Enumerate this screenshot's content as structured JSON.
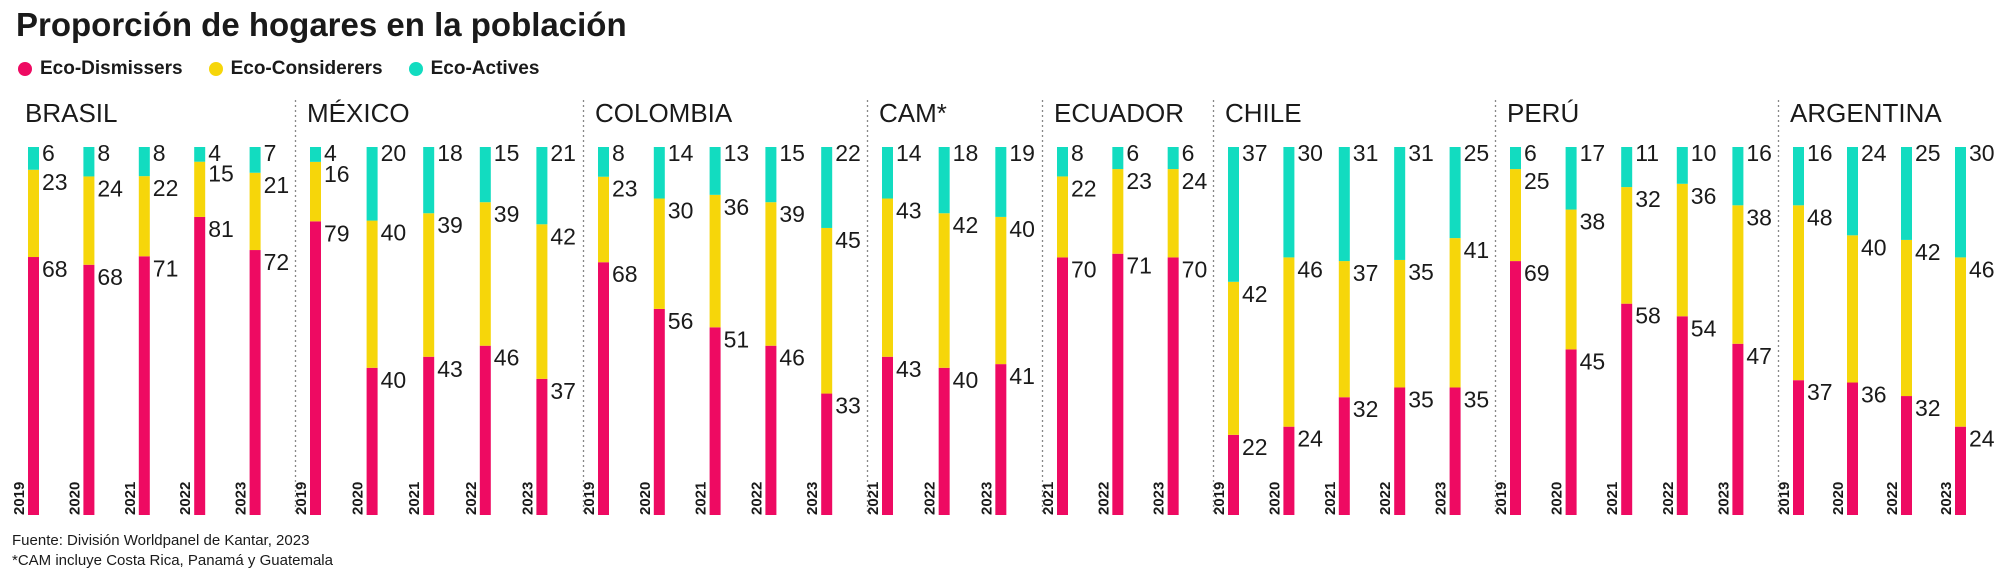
{
  "title": "Proporción de hogares en la población",
  "legend": [
    {
      "name": "Eco-Dismissers",
      "color": "#ee0a62"
    },
    {
      "name": "Eco-Considerers",
      "color": "#f6d60a"
    },
    {
      "name": "Eco-Actives",
      "color": "#12dcc0"
    }
  ],
  "footer": {
    "source": "Fuente: División Worldpanel de Kantar, 2023",
    "note": "*CAM incluye Costa Rica, Panamá y Guatemala"
  },
  "chart_data": {
    "type": "bar",
    "stacked": true,
    "series_names": [
      "Eco-Dismissers",
      "Eco-Considerers",
      "Eco-Actives"
    ],
    "colors": [
      "#ee0a62",
      "#f6d60a",
      "#12dcc0"
    ],
    "groups": [
      {
        "name": "BRASIL",
        "bars": [
          {
            "year": "2019",
            "values": [
              68,
              23,
              6
            ]
          },
          {
            "year": "2020",
            "values": [
              68,
              24,
              8
            ]
          },
          {
            "year": "2021",
            "values": [
              71,
              22,
              8
            ]
          },
          {
            "year": "2022",
            "values": [
              81,
              15,
              4
            ]
          },
          {
            "year": "2023",
            "values": [
              72,
              21,
              7
            ]
          }
        ]
      },
      {
        "name": "MÉXICO",
        "bars": [
          {
            "year": "2019",
            "values": [
              79,
              16,
              4
            ]
          },
          {
            "year": "2020",
            "values": [
              40,
              40,
              20
            ]
          },
          {
            "year": "2021",
            "values": [
              43,
              39,
              18
            ]
          },
          {
            "year": "2022",
            "values": [
              46,
              39,
              15
            ]
          },
          {
            "year": "2023",
            "values": [
              37,
              42,
              21
            ]
          }
        ]
      },
      {
        "name": "COLOMBIA",
        "bars": [
          {
            "year": "2019",
            "values": [
              68,
              23,
              8
            ]
          },
          {
            "year": "2020",
            "values": [
              56,
              30,
              14
            ]
          },
          {
            "year": "2021",
            "values": [
              51,
              36,
              13
            ]
          },
          {
            "year": "2022",
            "values": [
              46,
              39,
              15
            ]
          },
          {
            "year": "2023",
            "values": [
              33,
              45,
              22
            ]
          }
        ]
      },
      {
        "name": "CAM*",
        "bars": [
          {
            "year": "2021",
            "values": [
              43,
              43,
              14
            ]
          },
          {
            "year": "2022",
            "values": [
              40,
              42,
              18
            ]
          },
          {
            "year": "2023",
            "values": [
              41,
              40,
              19
            ]
          }
        ]
      },
      {
        "name": "ECUADOR",
        "bars": [
          {
            "year": "2021",
            "values": [
              70,
              22,
              8
            ]
          },
          {
            "year": "2022",
            "values": [
              71,
              23,
              6
            ]
          },
          {
            "year": "2023",
            "values": [
              70,
              24,
              6
            ]
          }
        ]
      },
      {
        "name": "CHILE",
        "bars": [
          {
            "year": "2019",
            "values": [
              22,
              42,
              37
            ]
          },
          {
            "year": "2020",
            "values": [
              24,
              46,
              30
            ]
          },
          {
            "year": "2021",
            "values": [
              32,
              37,
              31
            ]
          },
          {
            "year": "2022",
            "values": [
              35,
              35,
              31
            ]
          },
          {
            "year": "2023",
            "values": [
              35,
              41,
              25
            ]
          }
        ]
      },
      {
        "name": "PERÚ",
        "bars": [
          {
            "year": "2019",
            "values": [
              69,
              25,
              6
            ]
          },
          {
            "year": "2020",
            "values": [
              45,
              38,
              17
            ]
          },
          {
            "year": "2021",
            "values": [
              58,
              32,
              11
            ]
          },
          {
            "year": "2022",
            "values": [
              54,
              36,
              10
            ]
          },
          {
            "year": "2023",
            "values": [
              47,
              38,
              16
            ]
          }
        ]
      },
      {
        "name": "ARGENTINA",
        "bars": [
          {
            "year": "2019",
            "values": [
              37,
              48,
              16
            ]
          },
          {
            "year": "2020",
            "values": [
              36,
              40,
              24
            ]
          },
          {
            "year": "2022",
            "values": [
              32,
              42,
              25
            ]
          },
          {
            "year": "2023",
            "values": [
              24,
              46,
              30
            ]
          }
        ]
      }
    ]
  }
}
